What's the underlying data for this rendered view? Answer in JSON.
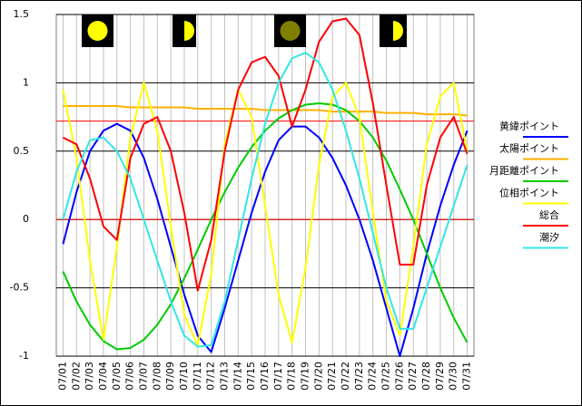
{
  "chart_data": {
    "type": "line",
    "categories": [
      "07/01",
      "07/02",
      "07/03",
      "07/04",
      "07/05",
      "07/06",
      "07/07",
      "07/08",
      "07/09",
      "07/10",
      "07/11",
      "07/12",
      "07/13",
      "07/14",
      "07/15",
      "07/16",
      "07/17",
      "07/18",
      "07/19",
      "07/20",
      "07/21",
      "07/22",
      "07/23",
      "07/24",
      "07/25",
      "07/26",
      "07/27",
      "07/28",
      "07/29",
      "07/30",
      "07/31"
    ],
    "ylim": [
      -1,
      1.5
    ],
    "yticks": [
      -1,
      -0.5,
      0,
      0.5,
      1,
      1.5
    ],
    "grid": true,
    "reference_lines": [
      {
        "value": 0.72,
        "color": "#ff0000"
      },
      {
        "value": 0,
        "color": "#ff0000"
      }
    ],
    "series": [
      {
        "name": "黄緯ポイント",
        "color": "#0000ff",
        "values": [
          -0.18,
          0.2,
          0.5,
          0.65,
          0.7,
          0.65,
          0.45,
          0.15,
          -0.2,
          -0.55,
          -0.85,
          -0.97,
          -0.65,
          -0.3,
          0.05,
          0.35,
          0.58,
          0.68,
          0.68,
          0.6,
          0.45,
          0.25,
          0.0,
          -0.3,
          -0.65,
          -1.0,
          -0.65,
          -0.25,
          0.1,
          0.4,
          0.65
        ]
      },
      {
        "name": "太陽ポイント",
        "color": "#ffb000",
        "values": [
          0.83,
          0.83,
          0.83,
          0.83,
          0.83,
          0.82,
          0.82,
          0.82,
          0.82,
          0.82,
          0.81,
          0.81,
          0.81,
          0.81,
          0.81,
          0.8,
          0.8,
          0.8,
          0.8,
          0.8,
          0.79,
          0.79,
          0.79,
          0.79,
          0.78,
          0.78,
          0.78,
          0.77,
          0.77,
          0.77,
          0.76
        ]
      },
      {
        "name": "月距離ポイント",
        "color": "#00cc00",
        "values": [
          -0.38,
          -0.6,
          -0.77,
          -0.89,
          -0.95,
          -0.94,
          -0.88,
          -0.77,
          -0.62,
          -0.43,
          -0.22,
          0.0,
          0.2,
          0.38,
          0.53,
          0.65,
          0.74,
          0.8,
          0.84,
          0.85,
          0.84,
          0.8,
          0.72,
          0.6,
          0.43,
          0.22,
          0.0,
          -0.25,
          -0.5,
          -0.72,
          -0.9
        ]
      },
      {
        "name": "位相ポイント",
        "color": "#ffff00",
        "values": [
          0.95,
          0.45,
          -0.3,
          -0.88,
          -0.2,
          0.6,
          1.0,
          0.65,
          -0.05,
          -0.7,
          -0.92,
          -0.4,
          0.55,
          0.95,
          0.75,
          0.1,
          -0.55,
          -0.9,
          -0.35,
          0.4,
          0.9,
          1.0,
          0.75,
          0.05,
          -0.6,
          -0.85,
          -0.2,
          0.55,
          0.9,
          1.0,
          0.5
        ]
      },
      {
        "name": "総合",
        "color": "#ff0000",
        "values": [
          0.6,
          0.55,
          0.3,
          -0.05,
          -0.15,
          0.45,
          0.7,
          0.75,
          0.5,
          0.05,
          -0.52,
          -0.15,
          0.5,
          0.95,
          1.15,
          1.19,
          1.05,
          0.68,
          0.95,
          1.3,
          1.45,
          1.47,
          1.35,
          0.85,
          0.25,
          -0.33,
          -0.33,
          0.25,
          0.6,
          0.75,
          0.48
        ]
      },
      {
        "name": "潮汐",
        "color": "#33e6e6",
        "values": [
          0.0,
          0.35,
          0.58,
          0.6,
          0.5,
          0.3,
          0.0,
          -0.3,
          -0.6,
          -0.85,
          -0.93,
          -0.92,
          -0.6,
          -0.15,
          0.3,
          0.7,
          1.0,
          1.18,
          1.22,
          1.15,
          0.95,
          0.65,
          0.3,
          -0.1,
          -0.5,
          -0.8,
          -0.8,
          -0.5,
          -0.2,
          0.1,
          0.4
        ]
      }
    ]
  }
}
